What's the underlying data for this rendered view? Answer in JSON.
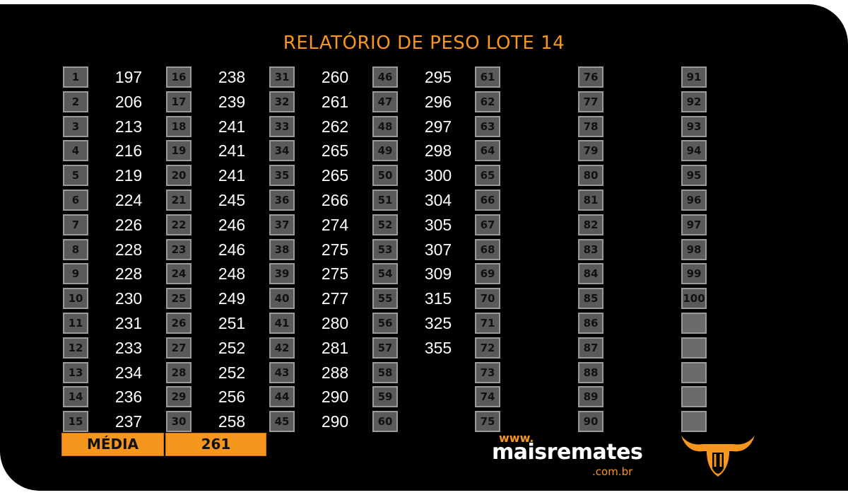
{
  "title": "RELATÓRIO DE PESO LOTE  14",
  "columns": [
    {
      "numbers": [
        "1",
        "2",
        "3",
        "4",
        "5",
        "6",
        "7",
        "8",
        "9",
        "10",
        "11",
        "12",
        "13",
        "14",
        "15"
      ],
      "weights": [
        "197",
        "206",
        "213",
        "216",
        "219",
        "224",
        "226",
        "228",
        "228",
        "230",
        "231",
        "233",
        "234",
        "236",
        "237"
      ]
    },
    {
      "numbers": [
        "16",
        "17",
        "18",
        "19",
        "20",
        "21",
        "22",
        "23",
        "24",
        "25",
        "26",
        "27",
        "28",
        "29",
        "30"
      ],
      "weights": [
        "238",
        "239",
        "241",
        "241",
        "241",
        "245",
        "246",
        "246",
        "248",
        "249",
        "251",
        "252",
        "252",
        "256",
        "258"
      ]
    },
    {
      "numbers": [
        "31",
        "32",
        "33",
        "34",
        "35",
        "36",
        "37",
        "38",
        "39",
        "40",
        "41",
        "42",
        "43",
        "44",
        "45"
      ],
      "weights": [
        "260",
        "261",
        "262",
        "265",
        "265",
        "266",
        "274",
        "275",
        "275",
        "277",
        "280",
        "281",
        "288",
        "290",
        "290"
      ]
    },
    {
      "numbers": [
        "46",
        "47",
        "48",
        "49",
        "50",
        "51",
        "52",
        "53",
        "54",
        "55",
        "56",
        "57",
        "58",
        "59",
        "60"
      ],
      "weights": [
        "295",
        "296",
        "297",
        "298",
        "300",
        "304",
        "305",
        "307",
        "309",
        "315",
        "325",
        "355",
        "",
        "",
        ""
      ]
    },
    {
      "numbers": [
        "61",
        "62",
        "63",
        "64",
        "65",
        "66",
        "67",
        "68",
        "69",
        "70",
        "71",
        "72",
        "73",
        "74",
        "75"
      ],
      "weights": [
        "",
        "",
        "",
        "",
        "",
        "",
        "",
        "",
        "",
        "",
        "",
        "",
        "",
        "",
        ""
      ]
    },
    {
      "numbers": [
        "76",
        "77",
        "78",
        "79",
        "80",
        "81",
        "82",
        "83",
        "84",
        "85",
        "86",
        "87",
        "88",
        "89",
        "90"
      ],
      "weights": [
        "",
        "",
        "",
        "",
        "",
        "",
        "",
        "",
        "",
        "",
        "",
        "",
        "",
        "",
        ""
      ]
    },
    {
      "numbers": [
        "91",
        "92",
        "93",
        "94",
        "95",
        "96",
        "97",
        "98",
        "99",
        "100",
        "",
        "",
        "",
        "",
        ""
      ],
      "weights": [
        "",
        "",
        "",
        "",
        "",
        "",
        "",
        "",
        "",
        "",
        "",
        "",
        "",
        "",
        ""
      ]
    }
  ],
  "footer": {
    "media_label": "MÉDIA",
    "media_value": "261"
  },
  "logo": {
    "www": "www.",
    "name": "maisremates",
    "domain": ".com.br"
  },
  "colors": {
    "accent": "#f5961e",
    "background": "#000000",
    "cell": "#5a5a5a"
  }
}
